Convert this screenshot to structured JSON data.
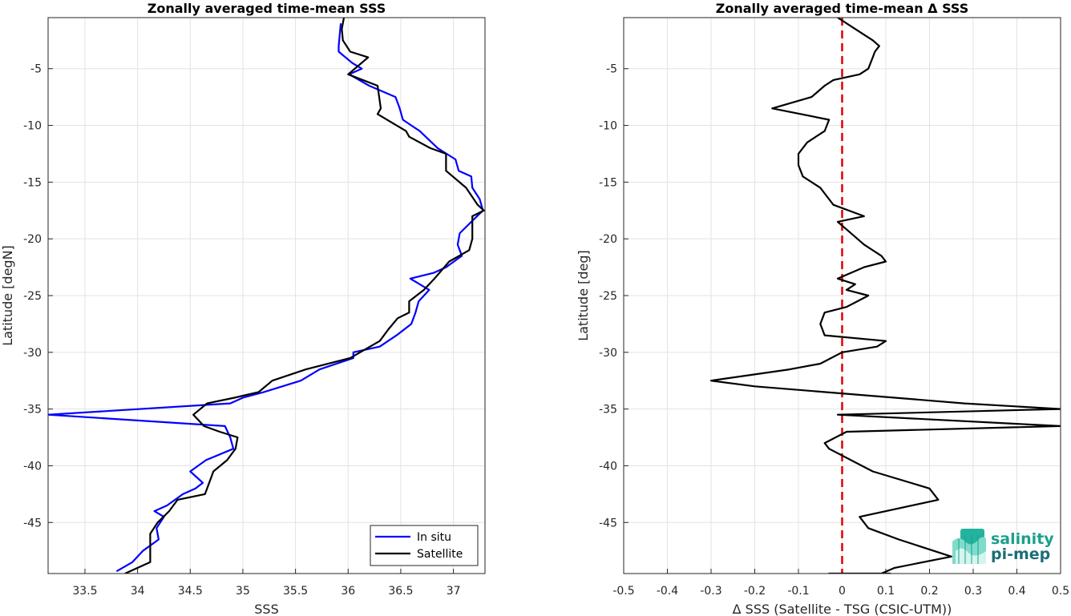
{
  "logo": {
    "line1": "salinity",
    "line2": "pi-mep"
  },
  "chart_data": [
    {
      "type": "line",
      "title": "Zonally averaged time-mean SSS",
      "xlabel": "SSS",
      "ylabel": "Latitude [degN]",
      "xlim": [
        33.15,
        37.3
      ],
      "ylim": [
        -49.5,
        -0.5
      ],
      "xticks": [
        33.5,
        34,
        34.5,
        35,
        35.5,
        36,
        36.5,
        37
      ],
      "xtick_labels": [
        "33.5",
        "34",
        "34.5",
        "35",
        "35.5",
        "36",
        "36.5",
        "37"
      ],
      "yticks": [
        -5,
        -10,
        -15,
        -20,
        -25,
        -30,
        -35,
        -40,
        -45
      ],
      "ytick_labels": [
        "-5",
        "-10",
        "-15",
        "-20",
        "-25",
        "-30",
        "-35",
        "-40",
        "-45"
      ],
      "grid": true,
      "legend": {
        "position": "bottom-right",
        "entries": [
          "In situ",
          "Satellite"
        ]
      },
      "series": [
        {
          "name": "In situ",
          "color": "#0000ff",
          "x": [
            35.93,
            35.92,
            35.91,
            35.91,
            36.04,
            36.13,
            36.01,
            36.2,
            36.45,
            36.49,
            36.52,
            36.6,
            36.68,
            36.85,
            37.02,
            37.05,
            37.17,
            37.18,
            37.25,
            37.28,
            37.17,
            37.06,
            37.04,
            37.08,
            36.93,
            36.81,
            36.59,
            36.77,
            36.67,
            36.64,
            36.6,
            36.46,
            36.3,
            36.05,
            36.05,
            35.73,
            35.55,
            35.2,
            35.0,
            34.88,
            33.15,
            34.83,
            34.88,
            34.91,
            34.65,
            34.5,
            34.62,
            34.55,
            34.43,
            34.28,
            34.16,
            34.25,
            34.18,
            34.2,
            34.05,
            33.95,
            33.8
          ],
          "y": [
            -1.0,
            -2.0,
            -3.0,
            -3.5,
            -4.5,
            -5.0,
            -5.5,
            -6.5,
            -7.5,
            -8.5,
            -9.5,
            -10.0,
            -10.5,
            -12.0,
            -13.0,
            -14.0,
            -14.5,
            -15.5,
            -16.5,
            -17.5,
            -18.5,
            -19.5,
            -20.5,
            -21.5,
            -22.5,
            -23.0,
            -23.5,
            -24.5,
            -25.5,
            -26.5,
            -27.5,
            -28.5,
            -29.5,
            -30.0,
            -30.5,
            -31.5,
            -32.5,
            -33.5,
            -34.0,
            -34.5,
            -35.5,
            -36.5,
            -37.5,
            -38.5,
            -39.5,
            -40.5,
            -41.5,
            -42.0,
            -42.5,
            -43.5,
            -44.0,
            -44.5,
            -45.5,
            -46.5,
            -47.5,
            -48.5,
            -49.3
          ]
        },
        {
          "name": "Satellite",
          "color": "#000000",
          "x": [
            35.96,
            35.94,
            35.95,
            36.02,
            36.19,
            36.0,
            36.28,
            36.31,
            36.28,
            36.46,
            36.55,
            36.58,
            36.78,
            36.93,
            36.93,
            37.12,
            37.23,
            37.29,
            37.18,
            37.18,
            37.15,
            36.96,
            36.82,
            36.72,
            36.58,
            36.58,
            36.47,
            36.38,
            36.3,
            36.02,
            35.6,
            35.28,
            35.15,
            34.92,
            34.66,
            34.53,
            34.63,
            34.78,
            34.95,
            34.93,
            34.85,
            34.72,
            34.7,
            34.64,
            34.38,
            34.3,
            34.19,
            34.12,
            34.12,
            34.12,
            33.88
          ],
          "y": [
            -0.5,
            -1.5,
            -2.5,
            -3.5,
            -4.0,
            -5.5,
            -6.5,
            -8.5,
            -9.0,
            -10.0,
            -10.5,
            -11.0,
            -12.0,
            -12.5,
            -14.0,
            -15.5,
            -17.0,
            -17.5,
            -18.0,
            -20.0,
            -21.0,
            -22.0,
            -23.5,
            -24.5,
            -25.5,
            -26.5,
            -27.0,
            -28.0,
            -29.0,
            -30.5,
            -31.5,
            -32.5,
            -33.5,
            -34.0,
            -34.5,
            -35.5,
            -36.5,
            -37.0,
            -37.5,
            -38.5,
            -39.5,
            -40.5,
            -41.0,
            -42.5,
            -43.0,
            -44.0,
            -45.0,
            -46.0,
            -47.0,
            -48.5,
            -49.5
          ]
        }
      ]
    },
    {
      "type": "line",
      "title": "Zonally averaged time-mean Δ SSS",
      "xlabel": "Δ SSS (Satellite - TSG (CSIC-UTM))",
      "ylabel": "Latitude [deg]",
      "xlim": [
        -0.5,
        0.5
      ],
      "ylim": [
        -49.5,
        -0.5
      ],
      "xticks": [
        -0.5,
        -0.4,
        -0.3,
        -0.2,
        -0.1,
        0,
        0.1,
        0.2,
        0.3,
        0.4,
        0.5
      ],
      "xtick_labels": [
        "-0.5",
        "-0.4",
        "-0.3",
        "-0.2",
        "-0.1",
        "0",
        "0.1",
        "0.2",
        "0.3",
        "0.4",
        "0.5"
      ],
      "yticks": [
        -5,
        -10,
        -15,
        -20,
        -25,
        -30,
        -35,
        -40,
        -45
      ],
      "ytick_labels": [
        "-5",
        "-10",
        "-15",
        "-20",
        "-25",
        "-30",
        "-35",
        "-40",
        "-45"
      ],
      "grid": true,
      "reference_line": {
        "x": 0,
        "color": "#e00000",
        "style": "dashed"
      },
      "series": [
        {
          "color": "#000000",
          "x": [
            -0.01,
            0.03,
            0.07,
            0.085,
            0.075,
            0.07,
            0.06,
            0.04,
            -0.02,
            -0.04,
            -0.07,
            -0.16,
            -0.03,
            -0.04,
            -0.08,
            -0.1,
            -0.1,
            -0.09,
            -0.05,
            -0.04,
            -0.02,
            0.05,
            -0.01,
            0.02,
            0.05,
            0.09,
            0.1,
            0.05,
            -0.01,
            0.03,
            0.01,
            0.06,
            0.01,
            -0.04,
            -0.05,
            -0.04,
            0.1,
            0.08,
            0.0,
            -0.05,
            -0.12,
            -0.3,
            -0.2,
            0.28,
            0.5,
            -0.01,
            0.5,
            0.01,
            -0.04,
            -0.03,
            0.07,
            0.2,
            0.22,
            0.04,
            0.06,
            0.13,
            0.25,
            0.12,
            0.09,
            0.11,
            0.07,
            0.03,
            -0.03,
            0.05,
            0.07,
            0.07
          ],
          "y": [
            -0.5,
            -1.5,
            -2.5,
            -3.0,
            -3.5,
            -4.0,
            -5.0,
            -5.5,
            -6.0,
            -6.5,
            -7.5,
            -8.5,
            -9.5,
            -10.5,
            -11.5,
            -12.5,
            -13.5,
            -14.5,
            -15.5,
            -16.0,
            -17.0,
            -18.0,
            -18.5,
            -19.5,
            -20.5,
            -21.5,
            -22.0,
            -22.5,
            -23.5,
            -24.0,
            -24.5,
            -25.0,
            -26.0,
            -26.5,
            -27.5,
            -28.5,
            -29.0,
            -29.5,
            -30.0,
            -31.0,
            -31.5,
            -32.5,
            -33.0,
            -34.5,
            -35.0,
            -35.5,
            -36.5,
            -37.0,
            -38.0,
            -38.5,
            -40.5,
            -42.0,
            -43.0,
            -44.5,
            -45.5,
            -46.5,
            -48.0,
            -49.0,
            -49.5,
            -49.5,
            -49.5,
            -49.5,
            -49.5,
            -49.5,
            -49.5,
            -49.5
          ]
        }
      ]
    }
  ]
}
